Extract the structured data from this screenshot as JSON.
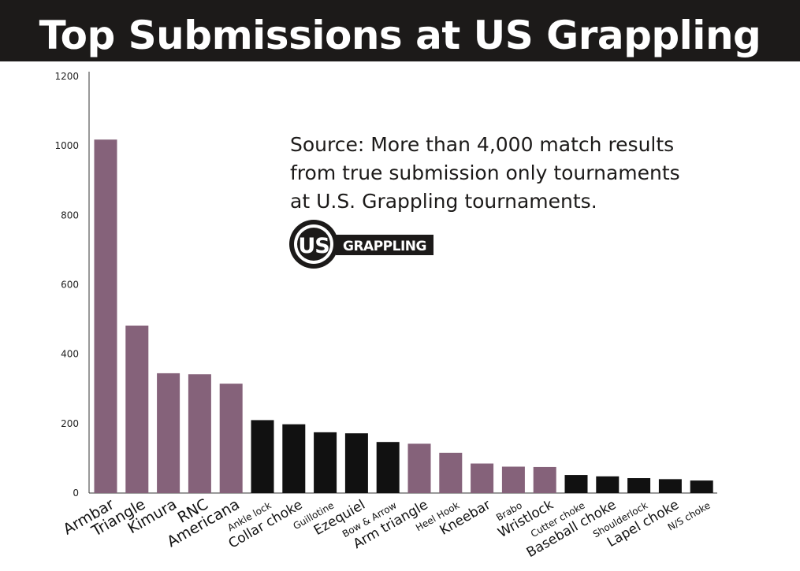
{
  "title": "Top Submissions at US Grappling",
  "source_note": [
    "Source:  More than 4,000 match results",
    "from true submission only tournaments",
    "at U.S. Grappling tournaments."
  ],
  "logo": {
    "mark": "US",
    "word": "GRAPPLING"
  },
  "colors": {
    "purple": "#85627a",
    "black": "#111111",
    "header": "#1c1a19"
  },
  "chart_data": {
    "type": "bar",
    "title": "Top Submissions at US Grappling",
    "xlabel": "",
    "ylabel": "",
    "ylim": [
      0,
      1200
    ],
    "yticks": [
      0,
      200,
      400,
      600,
      800,
      1000,
      1200
    ],
    "grid": false,
    "categories": [
      "Armbar",
      "Triangle",
      "Kimura",
      "RNC",
      "Americana",
      "Ankle lock",
      "Collar choke",
      "Guillotine",
      "Ezequiel",
      "Bow & Arrow",
      "Arm triangle",
      "Heel Hook",
      "Kneebar",
      "Brabo",
      "Wristlock",
      "Cutter choke",
      "Baseball choke",
      "Shoulderlock",
      "Lapel choke",
      "N/S choke"
    ],
    "values": [
      1018,
      482,
      345,
      342,
      315,
      210,
      198,
      175,
      172,
      147,
      142,
      116,
      85,
      76,
      75,
      52,
      48,
      43,
      40,
      36
    ],
    "bar_colors": [
      "purple",
      "purple",
      "purple",
      "purple",
      "purple",
      "black",
      "black",
      "black",
      "black",
      "black",
      "purple",
      "purple",
      "purple",
      "purple",
      "purple",
      "black",
      "black",
      "black",
      "black",
      "black"
    ]
  }
}
